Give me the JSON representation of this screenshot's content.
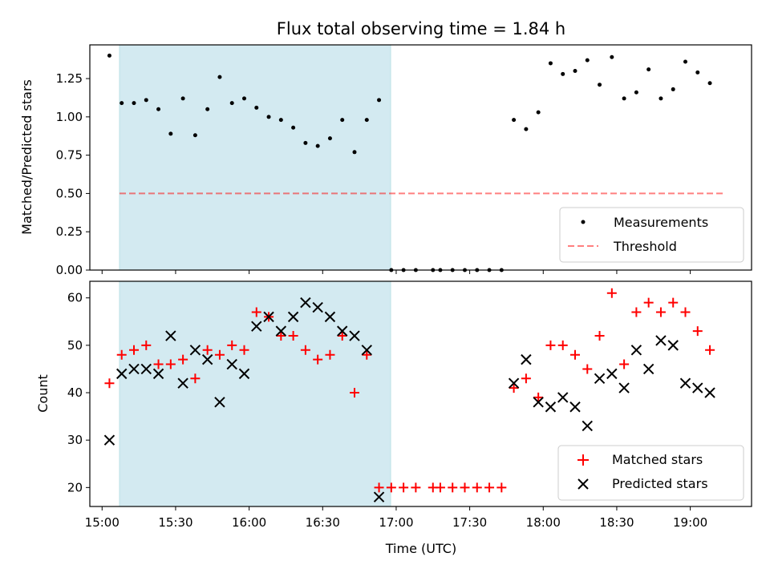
{
  "chart_data": [
    {
      "type": "scatter",
      "title": "Flux total observing time = 1.84 h",
      "xlabel": "",
      "ylabel": "Matched/Predicted stars",
      "ylim": [
        0,
        1.47
      ],
      "yticks": [
        0,
        0.25,
        0.5,
        0.75,
        1.0,
        1.25
      ],
      "ytick_labels": [
        "0.00",
        "0.25",
        "0.50",
        "0.75",
        "1.00",
        "1.25"
      ],
      "xlim": [
        "14:55",
        "19:25"
      ],
      "shaded_span": [
        "15:03",
        "16:53"
      ],
      "threshold": 0.5,
      "legend": [
        "Measurements",
        "Threshold"
      ],
      "legend_position": "lower-right",
      "series": [
        {
          "name": "Measurements",
          "marker": "dot",
          "color": "#000000",
          "points": [
            [
              "15:03",
              1.4
            ],
            [
              "15:08",
              1.09
            ],
            [
              "15:13",
              1.09
            ],
            [
              "15:18",
              1.11
            ],
            [
              "15:23",
              1.05
            ],
            [
              "15:28",
              0.89
            ],
            [
              "15:33",
              1.12
            ],
            [
              "15:38",
              0.88
            ],
            [
              "15:43",
              1.05
            ],
            [
              "15:48",
              1.26
            ],
            [
              "15:53",
              1.09
            ],
            [
              "15:58",
              1.12
            ],
            [
              "16:03",
              1.06
            ],
            [
              "16:08",
              1.0
            ],
            [
              "16:13",
              0.98
            ],
            [
              "16:18",
              0.93
            ],
            [
              "16:23",
              0.83
            ],
            [
              "16:28",
              0.81
            ],
            [
              "16:33",
              0.86
            ],
            [
              "16:38",
              0.98
            ],
            [
              "16:43",
              0.77
            ],
            [
              "16:48",
              0.98
            ],
            [
              "16:53",
              1.11
            ],
            [
              "16:58",
              0.0
            ],
            [
              "17:03",
              0.0
            ],
            [
              "17:08",
              0.0
            ],
            [
              "17:15",
              0.0
            ],
            [
              "17:18",
              0.0
            ],
            [
              "17:23",
              0.0
            ],
            [
              "17:28",
              0.0
            ],
            [
              "17:33",
              0.0
            ],
            [
              "17:38",
              0.0
            ],
            [
              "17:43",
              0.0
            ],
            [
              "17:48",
              0.98
            ],
            [
              "17:53",
              0.92
            ],
            [
              "17:58",
              1.03
            ],
            [
              "18:03",
              1.35
            ],
            [
              "18:08",
              1.28
            ],
            [
              "18:13",
              1.3
            ],
            [
              "18:18",
              1.37
            ],
            [
              "18:23",
              1.21
            ],
            [
              "18:28",
              1.39
            ],
            [
              "18:33",
              1.12
            ],
            [
              "18:38",
              1.16
            ],
            [
              "18:43",
              1.31
            ],
            [
              "18:48",
              1.12
            ],
            [
              "18:53",
              1.18
            ],
            [
              "18:58",
              1.36
            ],
            [
              "19:03",
              1.29
            ],
            [
              "19:08",
              1.22
            ]
          ]
        }
      ],
      "colors": {
        "shade": "#add8e6",
        "threshold": "#ff0000"
      }
    },
    {
      "type": "scatter",
      "title": "",
      "xlabel": "Time (UTC)",
      "ylabel": "Count",
      "ylim": [
        16,
        63.5
      ],
      "yticks": [
        20,
        30,
        40,
        50,
        60
      ],
      "ytick_labels": [
        "20",
        "30",
        "40",
        "50",
        "60"
      ],
      "xlim": [
        "14:55",
        "19:25"
      ],
      "xticks": [
        "15:00",
        "15:30",
        "16:00",
        "16:30",
        "17:00",
        "17:30",
        "18:00",
        "18:30",
        "19:00"
      ],
      "xtick_labels": [
        "15:00",
        "15:30",
        "16:00",
        "16:30",
        "17:00",
        "17:30",
        "18:00",
        "18:30",
        "19:00"
      ],
      "shaded_span": [
        "15:03",
        "16:53"
      ],
      "legend": [
        "Matched stars",
        "Predicted stars"
      ],
      "legend_position": "lower-right",
      "series": [
        {
          "name": "Matched stars",
          "marker": "plus",
          "color": "#ff0000",
          "points": [
            [
              "15:03",
              42
            ],
            [
              "15:08",
              48
            ],
            [
              "15:13",
              49
            ],
            [
              "15:18",
              50
            ],
            [
              "15:23",
              46
            ],
            [
              "15:28",
              46
            ],
            [
              "15:33",
              47
            ],
            [
              "15:38",
              43
            ],
            [
              "15:43",
              49
            ],
            [
              "15:48",
              48
            ],
            [
              "15:53",
              50
            ],
            [
              "15:58",
              49
            ],
            [
              "16:03",
              57
            ],
            [
              "16:08",
              56
            ],
            [
              "16:13",
              52
            ],
            [
              "16:18",
              52
            ],
            [
              "16:23",
              49
            ],
            [
              "16:28",
              47
            ],
            [
              "16:33",
              48
            ],
            [
              "16:38",
              52
            ],
            [
              "16:43",
              40
            ],
            [
              "16:48",
              48
            ],
            [
              "16:53",
              20
            ],
            [
              "16:58",
              20
            ],
            [
              "17:03",
              20
            ],
            [
              "17:08",
              20
            ],
            [
              "17:15",
              20
            ],
            [
              "17:18",
              20
            ],
            [
              "17:23",
              20
            ],
            [
              "17:28",
              20
            ],
            [
              "17:33",
              20
            ],
            [
              "17:38",
              20
            ],
            [
              "17:43",
              20
            ],
            [
              "17:48",
              41
            ],
            [
              "17:53",
              43
            ],
            [
              "17:58",
              39
            ],
            [
              "18:03",
              50
            ],
            [
              "18:08",
              50
            ],
            [
              "18:13",
              48
            ],
            [
              "18:18",
              45
            ],
            [
              "18:23",
              52
            ],
            [
              "18:28",
              61
            ],
            [
              "18:33",
              46
            ],
            [
              "18:38",
              57
            ],
            [
              "18:43",
              59
            ],
            [
              "18:48",
              57
            ],
            [
              "18:53",
              59
            ],
            [
              "18:58",
              57
            ],
            [
              "19:03",
              53
            ],
            [
              "19:08",
              49
            ]
          ]
        },
        {
          "name": "Predicted stars",
          "marker": "x",
          "color": "#000000",
          "points": [
            [
              "15:03",
              30
            ],
            [
              "15:08",
              44
            ],
            [
              "15:13",
              45
            ],
            [
              "15:18",
              45
            ],
            [
              "15:23",
              44
            ],
            [
              "15:28",
              52
            ],
            [
              "15:33",
              42
            ],
            [
              "15:38",
              49
            ],
            [
              "15:43",
              47
            ],
            [
              "15:48",
              38
            ],
            [
              "15:53",
              46
            ],
            [
              "15:58",
              44
            ],
            [
              "16:03",
              54
            ],
            [
              "16:08",
              56
            ],
            [
              "16:13",
              53
            ],
            [
              "16:18",
              56
            ],
            [
              "16:23",
              59
            ],
            [
              "16:28",
              58
            ],
            [
              "16:33",
              56
            ],
            [
              "16:38",
              53
            ],
            [
              "16:43",
              52
            ],
            [
              "16:48",
              49
            ],
            [
              "16:53",
              18
            ],
            [
              "17:48",
              42
            ],
            [
              "17:53",
              47
            ],
            [
              "17:58",
              38
            ],
            [
              "18:03",
              37
            ],
            [
              "18:08",
              39
            ],
            [
              "18:13",
              37
            ],
            [
              "18:18",
              33
            ],
            [
              "18:23",
              43
            ],
            [
              "18:28",
              44
            ],
            [
              "18:33",
              41
            ],
            [
              "18:38",
              49
            ],
            [
              "18:43",
              45
            ],
            [
              "18:48",
              51
            ],
            [
              "18:53",
              50
            ],
            [
              "18:58",
              42
            ],
            [
              "19:03",
              41
            ],
            [
              "19:08",
              40
            ]
          ]
        }
      ],
      "colors": {
        "shade": "#add8e6"
      }
    }
  ]
}
